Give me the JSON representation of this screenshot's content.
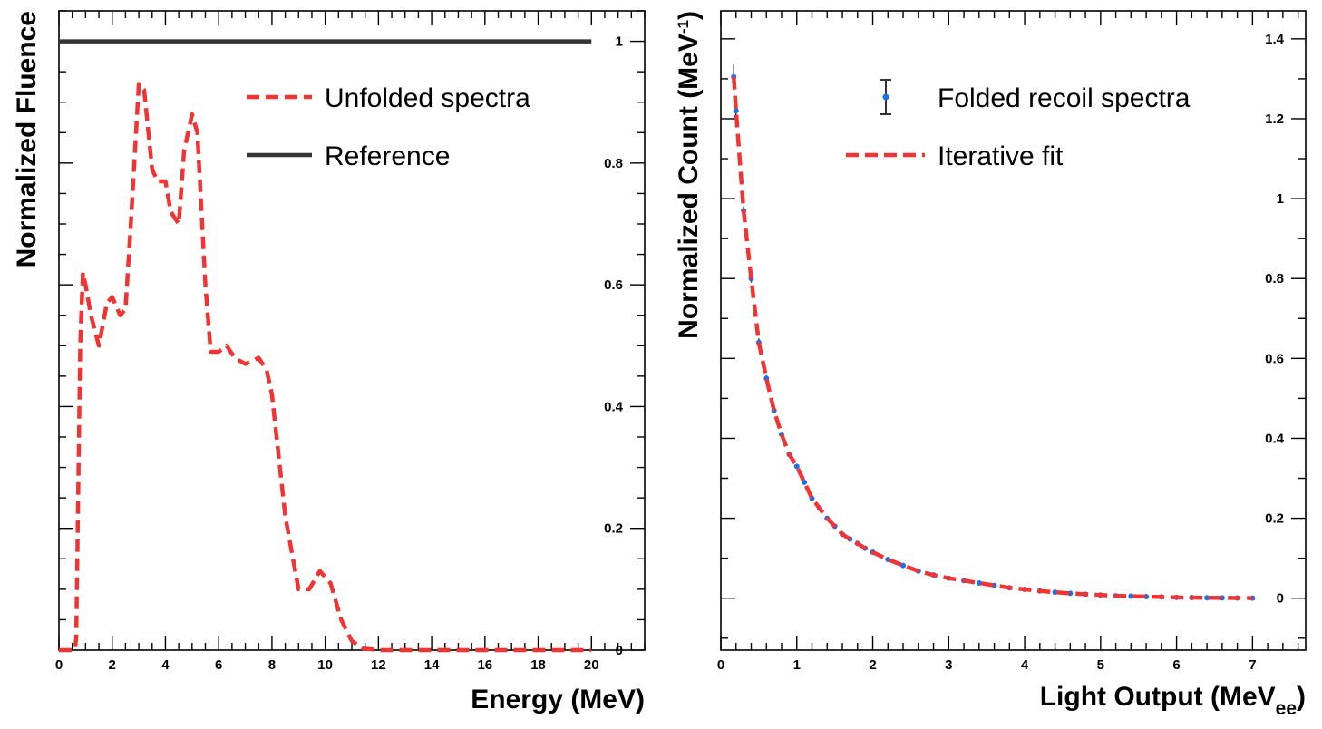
{
  "colors": {
    "unfolded": "#f03434",
    "reference": "#333333",
    "folded_points": "#1e6fe8",
    "fit": "#f03434",
    "error_bar": "#333333"
  },
  "chart_data": [
    {
      "type": "line",
      "xlabel": "Energy (MeV)",
      "ylabel": "Normalized Fluence",
      "xlim": [
        0,
        22
      ],
      "ylim": [
        0,
        1.05
      ],
      "x_ticks": [
        0,
        2,
        4,
        6,
        8,
        10,
        12,
        14,
        16,
        18,
        20
      ],
      "x_tick_labels": [
        "0",
        "2",
        "4",
        "6",
        "8",
        "10",
        "12",
        "14",
        "16",
        "18",
        "20"
      ],
      "y_ticks": [
        0,
        0.2,
        0.4,
        0.6,
        0.8,
        1
      ],
      "y_tick_labels": [
        "0",
        "0.2",
        "0.4",
        "0.6",
        "0.8",
        "1"
      ],
      "y_axis_side": "right",
      "legend": {
        "position": "top-right",
        "entries": [
          "Unfolded spectra",
          "Reference"
        ]
      },
      "series": [
        {
          "name": "Unfolded spectra",
          "style": "dashed",
          "x": [
            0,
            0.6,
            0.65,
            0.8,
            0.9,
            1.0,
            1.2,
            1.5,
            1.8,
            2.0,
            2.3,
            2.5,
            2.7,
            3.0,
            3.2,
            3.5,
            3.7,
            4.0,
            4.2,
            4.5,
            4.7,
            5.0,
            5.2,
            5.5,
            5.7,
            6.0,
            6.3,
            6.6,
            7.0,
            7.5,
            7.8,
            8.0,
            8.5,
            9.0,
            9.4,
            9.8,
            10.2,
            10.6,
            11.0,
            11.4,
            12,
            14,
            16,
            18,
            20
          ],
          "y": [
            0,
            0,
            0.02,
            0.5,
            0.62,
            0.6,
            0.55,
            0.5,
            0.57,
            0.58,
            0.55,
            0.56,
            0.7,
            0.93,
            0.92,
            0.79,
            0.77,
            0.77,
            0.72,
            0.7,
            0.82,
            0.88,
            0.85,
            0.6,
            0.49,
            0.49,
            0.5,
            0.48,
            0.47,
            0.48,
            0.46,
            0.42,
            0.22,
            0.1,
            0.1,
            0.13,
            0.11,
            0.05,
            0.015,
            0.003,
            0,
            0,
            0,
            0,
            0
          ]
        },
        {
          "name": "Reference",
          "style": "solid",
          "x": [
            0,
            20
          ],
          "y": [
            1.0,
            1.0
          ]
        }
      ]
    },
    {
      "type": "scatter",
      "xlabel": "Light Output (MeVee)",
      "ylabel": "Normalized Count (MeV-1)",
      "xlim": [
        0,
        7.7
      ],
      "ylim": [
        -0.13,
        1.47
      ],
      "x_ticks": [
        0,
        1,
        2,
        3,
        4,
        5,
        6,
        7
      ],
      "x_tick_labels": [
        "0",
        "1",
        "2",
        "3",
        "4",
        "5",
        "6",
        "7"
      ],
      "y_ticks": [
        0,
        0.2,
        0.4,
        0.6,
        0.8,
        1,
        1.2,
        1.4
      ],
      "y_tick_labels": [
        "0",
        "0.2",
        "0.4",
        "0.6",
        "0.8",
        "1",
        "1.2",
        "1.4"
      ],
      "y_axis_side": "right",
      "legend": {
        "position": "top-right",
        "entries": [
          "Folded recoil spectra",
          "Iterative fit"
        ]
      },
      "series": [
        {
          "name": "Folded recoil spectra",
          "style": "points-with-error-bars",
          "x": [
            0.17,
            0.2,
            0.3,
            0.4,
            0.5,
            0.6,
            0.7,
            0.8,
            0.9,
            1.0,
            1.1,
            1.2,
            1.3,
            1.4,
            1.5,
            1.6,
            1.7,
            1.8,
            1.9,
            2.0,
            2.2,
            2.4,
            2.6,
            2.8,
            3.0,
            3.2,
            3.4,
            3.6,
            3.8,
            4.0,
            4.2,
            4.4,
            4.6,
            4.8,
            5.0,
            5.2,
            5.4,
            5.6,
            5.8,
            6.0,
            6.2,
            6.4,
            6.6,
            6.8,
            7.0
          ],
          "y": [
            1.305,
            1.22,
            0.97,
            0.8,
            0.64,
            0.55,
            0.47,
            0.41,
            0.36,
            0.33,
            0.29,
            0.25,
            0.225,
            0.2,
            0.18,
            0.16,
            0.148,
            0.137,
            0.125,
            0.115,
            0.097,
            0.082,
            0.068,
            0.058,
            0.05,
            0.044,
            0.038,
            0.032,
            0.026,
            0.022,
            0.018,
            0.015,
            0.012,
            0.01,
            0.008,
            0.006,
            0.005,
            0.004,
            0.003,
            0.002,
            0.0015,
            0.001,
            0.0008,
            0.0005,
            0.0003
          ],
          "error": [
            0.03,
            0.02,
            0.01,
            0.01,
            0.01,
            0.008,
            0.008,
            0.006,
            0.006,
            0.006,
            0.005,
            0.004,
            0.004,
            0.003,
            0.003,
            0.003,
            0.003,
            0.002,
            0.002,
            0.002,
            0.002,
            0.002,
            0.002,
            0.001,
            0.001,
            0.001,
            0.001,
            0.001,
            0.001,
            0.001,
            0.001,
            0.001,
            0.001,
            0.001,
            0.001,
            0.001,
            0.001,
            0.001,
            0.001,
            0.001,
            0.001,
            0.001,
            0.001,
            0.001,
            0.001
          ]
        },
        {
          "name": "Iterative fit",
          "style": "dashed",
          "x": [
            0.17,
            0.2,
            0.3,
            0.4,
            0.5,
            0.6,
            0.7,
            0.8,
            0.9,
            1.0,
            1.1,
            1.2,
            1.3,
            1.4,
            1.5,
            1.6,
            1.7,
            1.8,
            1.9,
            2.0,
            2.2,
            2.4,
            2.6,
            2.8,
            3.0,
            3.2,
            3.4,
            3.6,
            3.8,
            4.0,
            4.2,
            4.4,
            4.6,
            4.8,
            5.0,
            5.2,
            5.4,
            5.6,
            5.8,
            6.0,
            6.2,
            6.4,
            6.6,
            6.8,
            7.0
          ],
          "y": [
            1.305,
            1.22,
            0.97,
            0.8,
            0.64,
            0.55,
            0.47,
            0.41,
            0.36,
            0.33,
            0.29,
            0.25,
            0.225,
            0.2,
            0.18,
            0.16,
            0.148,
            0.137,
            0.125,
            0.115,
            0.097,
            0.082,
            0.068,
            0.058,
            0.05,
            0.044,
            0.038,
            0.032,
            0.026,
            0.022,
            0.018,
            0.015,
            0.012,
            0.01,
            0.008,
            0.006,
            0.005,
            0.004,
            0.003,
            0.002,
            0.0015,
            0.001,
            0.0008,
            0.0005,
            0.0003
          ]
        }
      ]
    }
  ]
}
